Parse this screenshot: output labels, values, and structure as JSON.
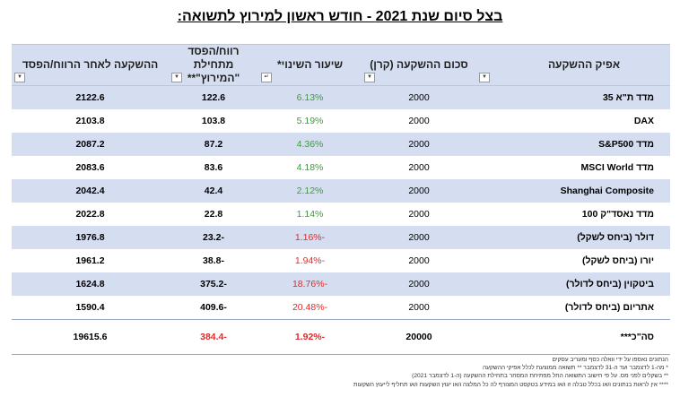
{
  "title": "בצל סיום שנת 2021 - חודש ראשון למירוץ לתשואה:",
  "table": {
    "headers": [
      "אפיק ההשקעה",
      "סכום ההשקעה (קרן)",
      "שיעור השינוי*",
      "רווח/הפסד מתחילת \"המירוץ\"**",
      "ההשקעה לאחר הרווח/הפסד"
    ],
    "rows": [
      {
        "name": "מדד ת\"א 35",
        "principal": "2000",
        "change": "6.13%",
        "pnl": "122.6",
        "after": "2122.6",
        "negative": false
      },
      {
        "name": "DAX",
        "principal": "2000",
        "change": "5.19%",
        "pnl": "103.8",
        "after": "2103.8",
        "negative": false
      },
      {
        "name": "מדד S&P500",
        "principal": "2000",
        "change": "4.36%",
        "pnl": "87.2",
        "after": "2087.2",
        "negative": false
      },
      {
        "name": "מדד MSCI World",
        "principal": "2000",
        "change": "4.18%",
        "pnl": "83.6",
        "after": "2083.6",
        "negative": false
      },
      {
        "name": "Shanghai Composite",
        "principal": "2000",
        "change": "2.12%",
        "pnl": "42.4",
        "after": "2042.4",
        "negative": false
      },
      {
        "name": "מדד נאסד\"ק 100",
        "principal": "2000",
        "change": "1.14%",
        "pnl": "22.8",
        "after": "2022.8",
        "negative": false
      },
      {
        "name": "דולר (ביחס לשקל)",
        "principal": "2000",
        "change": "-1.16%",
        "pnl": "-23.2",
        "after": "1976.8",
        "negative": true
      },
      {
        "name": "יורו (ביחס לשקל)",
        "principal": "2000",
        "change": "-1.94%",
        "pnl": "-38.8",
        "after": "1961.2",
        "negative": true
      },
      {
        "name": "ביטקוין (ביחס לדולר)",
        "principal": "2000",
        "change": "-18.76%",
        "pnl": "-375.2",
        "after": "1624.8",
        "negative": true
      },
      {
        "name": "אתריום (ביחס לדולר)",
        "principal": "2000",
        "change": "-20.48%",
        "pnl": "-409.6",
        "after": "1590.4",
        "negative": true
      }
    ],
    "total": {
      "name": "סה\"כ***",
      "principal": "20000",
      "change": "-1.92%",
      "pnl": "-384.4",
      "after": "19615.6"
    }
  },
  "notes": [
    "הנתונים נאספו על ידי וואלה כסף ומעריב עסקים",
    "* מה-1 לדצמבר ועד ה-31 לדצמבר ** תשואה ממוצעת לכלל אפיקי ההשקעה",
    "** בשקלים לפני מס. על פי חישוב התשואה החל מפתיחת המסחר בתחילת ההשקעה (ה-1 לדצמבר 2021)",
    "**** אין לראות בנתונים ו/או בכלל טבלה זו ו/או במידע בטקסט המצורף לה כל המלצה ו/או יעוץ השקעות ו/או תחליף לייעוץ השקעות"
  ],
  "colors": {
    "header_bg": "#d5def0",
    "positive": "#3f9a3f",
    "negative": "#e02a2a"
  },
  "icons": {
    "filter": "filter-dropdown-icon"
  }
}
